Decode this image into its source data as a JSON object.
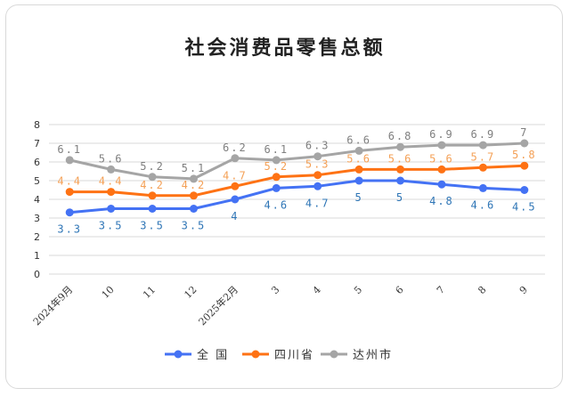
{
  "chart_data": {
    "type": "line",
    "title": "社会消费品零售总额",
    "categories": [
      "2024年9月",
      "10",
      "11",
      "12",
      "2025年2月",
      "3",
      "4",
      "5",
      "6",
      "7",
      "8",
      "9"
    ],
    "y_ticks": [
      "0",
      "1",
      "2",
      "3",
      "4",
      "5",
      "6",
      "7",
      "8"
    ],
    "ylim": [
      0,
      8
    ],
    "grid": true,
    "legend_position": "bottom",
    "series": [
      {
        "name": "全 国",
        "color": "#4472f4",
        "label_color": "#2e75b6",
        "label_position": "below",
        "values": [
          3.3,
          3.5,
          3.5,
          3.5,
          4,
          4.6,
          4.7,
          5,
          5,
          4.8,
          4.6,
          4.5
        ],
        "labels": [
          "3.3",
          "3.5",
          "3.5",
          "3.5",
          "4",
          "4.6",
          "4.7",
          "5",
          "5",
          "4.8",
          "4.6",
          "4.5"
        ]
      },
      {
        "name": "四川省",
        "color": "#fe7214",
        "label_color": "#f4a056",
        "label_position": "above",
        "values": [
          4.4,
          4.4,
          4.2,
          4.2,
          4.7,
          5.2,
          5.3,
          5.6,
          5.6,
          5.6,
          5.7,
          5.8
        ],
        "labels": [
          "4.4",
          "4.4",
          "4.2",
          "4.2",
          "4.7",
          "5.2",
          "5.3",
          "5.6",
          "5.6",
          "5.6",
          "5.7",
          "5.8"
        ]
      },
      {
        "name": "达州市",
        "color": "#a5a5a5",
        "label_color": "#7f7f7f",
        "label_position": "above",
        "values": [
          6.1,
          5.6,
          5.2,
          5.1,
          6.2,
          6.1,
          6.3,
          6.6,
          6.8,
          6.9,
          6.9,
          7
        ],
        "labels": [
          "6.1",
          "5.6",
          "5.2",
          "5.1",
          "6.2",
          "6.1",
          "6.3",
          "6.6",
          "6.8",
          "6.9",
          "6.9",
          "7"
        ]
      }
    ]
  }
}
